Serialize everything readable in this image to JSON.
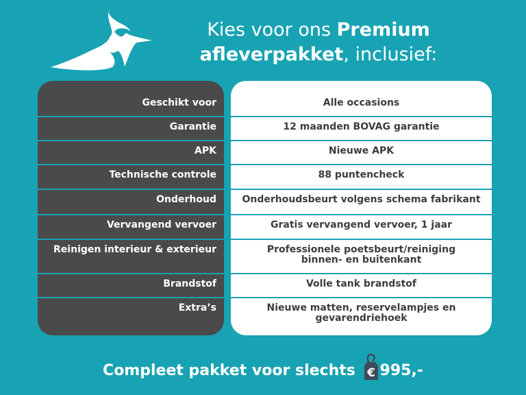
{
  "headline": {
    "line1_plain": "Kies voor ons ",
    "line1_bold": "Premium",
    "line2_bold": "afleverpakket",
    "line2_plain": ", inclusief:"
  },
  "rows": [
    {
      "label": "Geschikt voor",
      "value": "Alle occasions"
    },
    {
      "label": "Garantie",
      "value": "12 maanden BOVAG garantie"
    },
    {
      "label": "APK",
      "value": "Nieuwe APK"
    },
    {
      "label": "Technische controle",
      "value": "88 puntencheck"
    },
    {
      "label": "Onderhoud",
      "value": "Onderhoudsbeurt volgens schema fabrikant"
    },
    {
      "label": "Vervangend vervoer",
      "value": "Gratis vervangend vervoer, 1 jaar"
    },
    {
      "label": "Reinigen interieur & exterieur",
      "value": "Professionele poetsbeurt/reiniging binnen- en buitenkant"
    },
    {
      "label": "Brandstof",
      "value": "Volle tank brandstof"
    },
    {
      "label": "Extra’s",
      "value": "Nieuwe matten, reservelampjes en gevarendriehoek"
    }
  ],
  "footer": {
    "text": "Compleet pakket voor slechts",
    "currency": "€",
    "price": "995,-",
    "icon": "price-tag-icon"
  },
  "colors": {
    "background": "#17a3b3",
    "label_panel": "#4a4a4a",
    "value_panel": "#ffffff"
  }
}
